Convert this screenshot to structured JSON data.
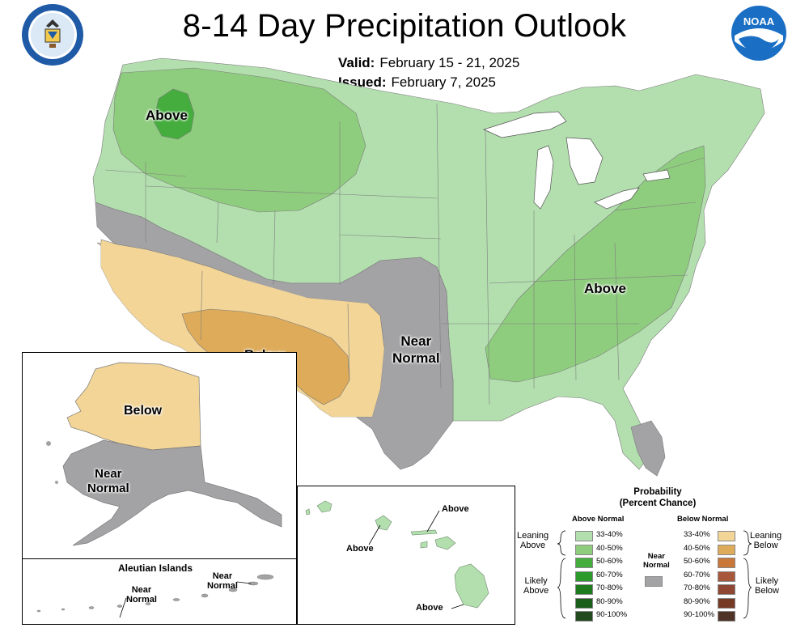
{
  "header": {
    "title": "8-14 Day Precipitation Outlook",
    "valid_label": "Valid:",
    "valid_value": "February 15 - 21, 2025",
    "issued_label": "Issued:",
    "issued_value": "February 7, 2025"
  },
  "logos": {
    "noaa_text": "NOAA",
    "seal_text": "DEPARTMENT OF COMMERCE · UNITED STATES OF AMERICA"
  },
  "map_labels": {
    "conus_above_nw": "Above",
    "conus_above_se": "Above",
    "conus_below": "Below",
    "conus_near_normal_line1": "Near",
    "conus_near_normal_line2": "Normal",
    "alaska_below": "Below",
    "alaska_near_line1": "Near",
    "alaska_near_line2": "Normal",
    "aleutian_title": "Aleutian Islands",
    "aleutian_near1_line1": "Near",
    "aleutian_near1_line2": "Normal",
    "aleutian_near2_line1": "Near",
    "aleutian_near2_line2": "Normal",
    "hawaii_above_1": "Above",
    "hawaii_above_2": "Above",
    "hawaii_above_3": "Above"
  },
  "legend": {
    "title_line1": "Probability",
    "title_line2": "(Percent Chance)",
    "above_header": "Above Normal",
    "below_header": "Below Normal",
    "near_label_line1": "Near",
    "near_label_line2": "Normal",
    "leaning_above": [
      "Leaning",
      "Above"
    ],
    "likely_above": [
      "Likely",
      "Above"
    ],
    "leaning_below": [
      "Leaning",
      "Below"
    ],
    "likely_below": [
      "Likely",
      "Below"
    ],
    "above_categories": [
      {
        "range": "33-40%",
        "color": "#b3dfaf"
      },
      {
        "range": "40-50%",
        "color": "#8fcd7e"
      },
      {
        "range": "50-60%",
        "color": "#45ad3e"
      },
      {
        "range": "60-70%",
        "color": "#2a9a2a"
      },
      {
        "range": "70-80%",
        "color": "#1d7a1d"
      },
      {
        "range": "80-90%",
        "color": "#1c5e1c"
      },
      {
        "range": "90-100%",
        "color": "#234a1e"
      }
    ],
    "below_categories": [
      {
        "range": "33-40%",
        "color": "#f2d597"
      },
      {
        "range": "40-50%",
        "color": "#deab5a"
      },
      {
        "range": "50-60%",
        "color": "#c9783a"
      },
      {
        "range": "60-70%",
        "color": "#a8583a"
      },
      {
        "range": "70-80%",
        "color": "#8f4632"
      },
      {
        "range": "80-90%",
        "color": "#763a24"
      },
      {
        "range": "90-100%",
        "color": "#4f3327"
      }
    ],
    "near_color": "#a3a3a5"
  },
  "colors": {
    "above_33_40": "#b3dfaf",
    "above_40_50": "#8fcd7e",
    "above_50_60": "#45ad3e",
    "below_33_40": "#f2d597",
    "below_40_50": "#deab5a",
    "near_normal": "#a3a3a5",
    "water": "#ffffff"
  }
}
